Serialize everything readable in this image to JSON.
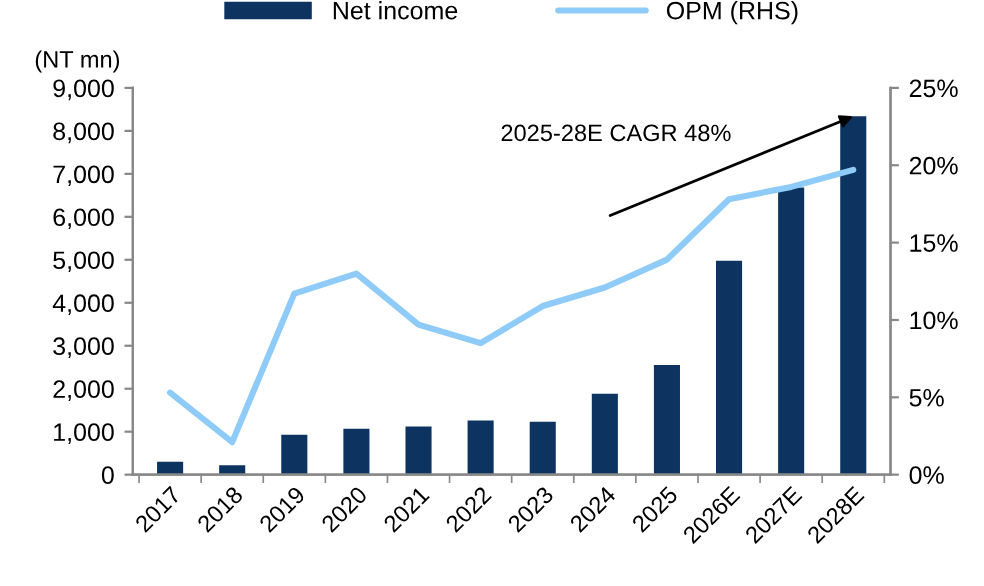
{
  "chart_data": {
    "type": "bar",
    "ylabel": "(NT mn)",
    "categories": [
      "2017",
      "2018",
      "2019",
      "2020",
      "2021",
      "2022",
      "2023",
      "2024",
      "2025",
      "2026E",
      "2027E",
      "2028E"
    ],
    "series": [
      {
        "name": "Net income",
        "color": "#0d3461",
        "values": [
          300,
          220,
          930,
          1070,
          1120,
          1260,
          1230,
          1880,
          2550,
          4980,
          6680,
          8340
        ]
      },
      {
        "name": "OPM (RHS)",
        "type": "line",
        "axis": "y2",
        "color": "#8ecbf8",
        "values": [
          5.3,
          2.1,
          11.7,
          13.0,
          9.7,
          8.5,
          10.9,
          12.1,
          13.9,
          17.8,
          18.6,
          19.7
        ]
      }
    ],
    "ylim": [
      0,
      9000
    ],
    "yticks": [
      {
        "value": 0,
        "label": "0"
      },
      {
        "value": 1000,
        "label": "1,000"
      },
      {
        "value": 2000,
        "label": "2,000"
      },
      {
        "value": 3000,
        "label": "3,000"
      },
      {
        "value": 4000,
        "label": "4,000"
      },
      {
        "value": 5000,
        "label": "5,000"
      },
      {
        "value": 6000,
        "label": "6,000"
      },
      {
        "value": 7000,
        "label": "7,000"
      },
      {
        "value": 8000,
        "label": "8,000"
      },
      {
        "value": 9000,
        "label": "9,000"
      }
    ],
    "y2lim": [
      0,
      25
    ],
    "y2ticks": [
      {
        "value": 0,
        "label": "0%"
      },
      {
        "value": 5,
        "label": "5%"
      },
      {
        "value": 10,
        "label": "10%"
      },
      {
        "value": 15,
        "label": "15%"
      },
      {
        "value": 20,
        "label": "20%"
      },
      {
        "value": 25,
        "label": "25%"
      }
    ],
    "annotations": [
      "2025-28E CAGR 48%"
    ],
    "legend": "top",
    "grid": false
  }
}
